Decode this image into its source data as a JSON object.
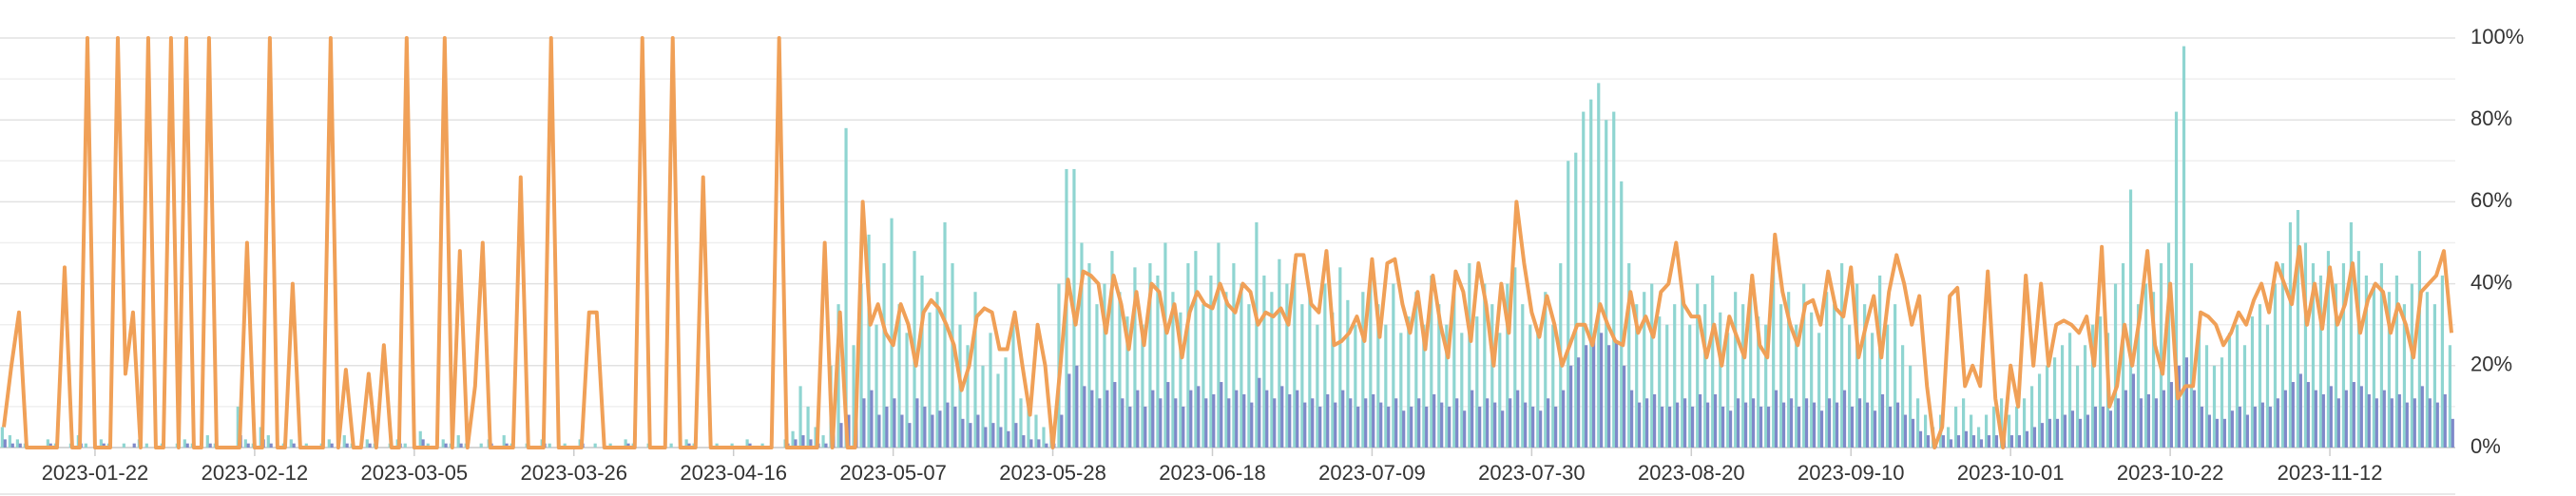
{
  "chart_data": {
    "type": "combo",
    "categories": [
      null,
      null,
      null,
      null,
      null,
      null,
      null,
      null,
      null,
      null,
      null,
      null,
      "2023-01-22",
      null,
      null,
      null,
      null,
      null,
      null,
      null,
      null,
      null,
      null,
      null,
      null,
      null,
      null,
      null,
      null,
      null,
      null,
      null,
      null,
      "2023-02-12",
      null,
      null,
      null,
      null,
      null,
      null,
      null,
      null,
      null,
      null,
      null,
      null,
      null,
      null,
      null,
      null,
      null,
      null,
      null,
      null,
      "2023-03-05",
      null,
      null,
      null,
      null,
      null,
      null,
      null,
      null,
      null,
      null,
      null,
      null,
      null,
      null,
      null,
      null,
      null,
      null,
      null,
      null,
      "2023-03-26",
      null,
      null,
      null,
      null,
      null,
      null,
      null,
      null,
      null,
      null,
      null,
      null,
      null,
      null,
      null,
      null,
      null,
      null,
      null,
      null,
      "2023-04-16",
      null,
      null,
      null,
      null,
      null,
      null,
      null,
      null,
      null,
      null,
      null,
      null,
      null,
      null,
      null,
      null,
      null,
      null,
      null,
      null,
      "2023-05-07",
      null,
      null,
      null,
      null,
      null,
      null,
      null,
      null,
      null,
      null,
      null,
      null,
      null,
      null,
      null,
      null,
      null,
      null,
      null,
      null,
      "2023-05-28",
      null,
      null,
      null,
      null,
      null,
      null,
      null,
      null,
      null,
      null,
      null,
      null,
      null,
      null,
      null,
      null,
      null,
      null,
      null,
      null,
      "2023-06-18",
      null,
      null,
      null,
      null,
      null,
      null,
      null,
      null,
      null,
      null,
      null,
      null,
      null,
      null,
      null,
      null,
      null,
      null,
      null,
      null,
      "2023-07-09",
      null,
      null,
      null,
      null,
      null,
      null,
      null,
      null,
      null,
      null,
      null,
      null,
      null,
      null,
      null,
      null,
      null,
      null,
      null,
      null,
      "2023-07-30",
      null,
      null,
      null,
      null,
      null,
      null,
      null,
      null,
      null,
      null,
      null,
      null,
      null,
      null,
      null,
      null,
      null,
      null,
      null,
      null,
      "2023-08-20",
      null,
      null,
      null,
      null,
      null,
      null,
      null,
      null,
      null,
      null,
      null,
      null,
      null,
      null,
      null,
      null,
      null,
      null,
      null,
      null,
      "2023-09-10",
      null,
      null,
      null,
      null,
      null,
      null,
      null,
      null,
      null,
      null,
      null,
      null,
      null,
      null,
      null,
      null,
      null,
      null,
      null,
      null,
      "2023-10-01",
      null,
      null,
      null,
      null,
      null,
      null,
      null,
      null,
      null,
      null,
      null,
      null,
      null,
      null,
      null,
      null,
      null,
      null,
      null,
      null,
      "2023-10-22",
      null,
      null,
      null,
      null,
      null,
      null,
      null,
      null,
      null,
      null,
      null,
      null,
      null,
      null,
      null,
      null,
      null,
      null,
      null,
      null,
      "2023-11-12",
      null,
      null,
      null,
      null,
      null,
      null,
      null,
      null,
      null,
      null,
      null,
      null,
      null,
      null,
      null,
      null
    ],
    "series": [
      {
        "type": "bar",
        "color": "#8fd5d1",
        "values": [
          5,
          3,
          2,
          1,
          0,
          0,
          2,
          1,
          0,
          1,
          3,
          1,
          0,
          2,
          1,
          0,
          1,
          0,
          2,
          1,
          0,
          1,
          0,
          1,
          2,
          1,
          0,
          3,
          1,
          0,
          0,
          10,
          2,
          1,
          5,
          3,
          0,
          1,
          2,
          0,
          1,
          0,
          1,
          2,
          0,
          3,
          1,
          0,
          2,
          1,
          0,
          1,
          2,
          1,
          0,
          4,
          1,
          0,
          2,
          1,
          3,
          1,
          0,
          1,
          2,
          0,
          3,
          1,
          0,
          1,
          0,
          2,
          1,
          0,
          1,
          0,
          2,
          0,
          1,
          0,
          1,
          0,
          2,
          1,
          0,
          1,
          0,
          0,
          1,
          0,
          2,
          1,
          0,
          0,
          1,
          0,
          1,
          0,
          2,
          0,
          1,
          0,
          0,
          2,
          4,
          15,
          10,
          5,
          3,
          20,
          35,
          78,
          25,
          40,
          52,
          30,
          45,
          56,
          35,
          28,
          48,
          42,
          33,
          38,
          55,
          45,
          30,
          25,
          38,
          20,
          28,
          18,
          22,
          30,
          12,
          10,
          8,
          5,
          3,
          40,
          68,
          68,
          50,
          45,
          35,
          40,
          48,
          38,
          32,
          44,
          30,
          45,
          42,
          50,
          38,
          33,
          45,
          48,
          35,
          42,
          50,
          38,
          45,
          40,
          35,
          55,
          42,
          38,
          46,
          40,
          45,
          35,
          38,
          30,
          40,
          33,
          44,
          36,
          30,
          38,
          42,
          35,
          30,
          40,
          28,
          32,
          38,
          30,
          42,
          35,
          30,
          38,
          28,
          45,
          32,
          40,
          35,
          28,
          40,
          44,
          35,
          30,
          28,
          38,
          30,
          45,
          70,
          72,
          82,
          85,
          89,
          80,
          82,
          65,
          45,
          35,
          38,
          40,
          32,
          30,
          35,
          38,
          30,
          40,
          35,
          42,
          33,
          28,
          38,
          35,
          40,
          32,
          30,
          45,
          35,
          38,
          30,
          40,
          33,
          28,
          38,
          35,
          45,
          30,
          40,
          35,
          28,
          42,
          30,
          35,
          25,
          20,
          12,
          8,
          5,
          8,
          5,
          10,
          12,
          8,
          5,
          8,
          10,
          12,
          8,
          10,
          12,
          15,
          18,
          20,
          22,
          25,
          28,
          20,
          25,
          30,
          32,
          28,
          40,
          45,
          63,
          35,
          40,
          38,
          45,
          50,
          82,
          98,
          45,
          30,
          25,
          20,
          22,
          28,
          30,
          25,
          32,
          35,
          30,
          40,
          45,
          55,
          58,
          50,
          45,
          42,
          48,
          40,
          45,
          55,
          48,
          42,
          40,
          45,
          38,
          42,
          35,
          40,
          48,
          38,
          35,
          42,
          25
        ]
      },
      {
        "type": "bar",
        "color": "#7f89c9",
        "values": [
          2,
          1,
          1,
          0,
          0,
          0,
          1,
          0,
          0,
          0,
          1,
          0,
          0,
          1,
          0,
          0,
          0,
          1,
          0,
          0,
          0,
          0,
          0,
          0,
          1,
          0,
          0,
          1,
          0,
          0,
          0,
          3,
          1,
          0,
          2,
          1,
          0,
          0,
          1,
          0,
          0,
          0,
          0,
          1,
          0,
          1,
          0,
          0,
          1,
          0,
          0,
          0,
          1,
          0,
          0,
          2,
          0,
          0,
          1,
          0,
          1,
          0,
          0,
          0,
          1,
          0,
          1,
          0,
          0,
          0,
          0,
          1,
          0,
          0,
          0,
          0,
          1,
          0,
          0,
          0,
          0,
          0,
          1,
          0,
          0,
          0,
          0,
          0,
          0,
          0,
          1,
          0,
          0,
          0,
          0,
          0,
          0,
          0,
          1,
          0,
          0,
          0,
          0,
          1,
          2,
          3,
          2,
          1,
          1,
          4,
          6,
          8,
          10,
          12,
          14,
          8,
          10,
          12,
          8,
          6,
          12,
          10,
          8,
          9,
          11,
          10,
          7,
          6,
          8,
          5,
          6,
          5,
          4,
          6,
          3,
          2,
          2,
          1,
          1,
          8,
          18,
          20,
          15,
          14,
          12,
          14,
          16,
          12,
          10,
          14,
          10,
          14,
          12,
          16,
          12,
          10,
          14,
          15,
          12,
          13,
          16,
          12,
          14,
          13,
          11,
          17,
          14,
          12,
          15,
          13,
          14,
          11,
          12,
          10,
          13,
          11,
          14,
          12,
          10,
          12,
          13,
          11,
          10,
          12,
          9,
          10,
          12,
          10,
          13,
          11,
          10,
          12,
          9,
          14,
          10,
          12,
          11,
          9,
          12,
          14,
          11,
          10,
          9,
          12,
          10,
          14,
          20,
          22,
          25,
          27,
          28,
          25,
          26,
          20,
          14,
          11,
          12,
          13,
          10,
          10,
          11,
          12,
          10,
          13,
          11,
          13,
          10,
          9,
          12,
          11,
          12,
          10,
          10,
          14,
          11,
          12,
          10,
          12,
          11,
          9,
          12,
          11,
          14,
          10,
          12,
          11,
          9,
          13,
          10,
          11,
          8,
          7,
          4,
          3,
          2,
          3,
          2,
          3,
          4,
          3,
          2,
          3,
          3,
          4,
          3,
          3,
          4,
          5,
          6,
          7,
          7,
          8,
          9,
          7,
          8,
          10,
          10,
          9,
          12,
          14,
          18,
          12,
          13,
          12,
          14,
          16,
          20,
          22,
          14,
          10,
          8,
          7,
          7,
          9,
          10,
          8,
          10,
          11,
          10,
          12,
          14,
          16,
          18,
          16,
          14,
          13,
          15,
          12,
          14,
          16,
          15,
          13,
          12,
          14,
          12,
          13,
          11,
          12,
          15,
          12,
          11,
          13,
          7
        ]
      },
      {
        "type": "line",
        "color": "#f0a057",
        "values": [
          5,
          20,
          33,
          0,
          0,
          0,
          0,
          0,
          44,
          0,
          0,
          100,
          0,
          0,
          0,
          100,
          18,
          33,
          0,
          100,
          0,
          0,
          100,
          0,
          100,
          0,
          0,
          100,
          0,
          0,
          0,
          0,
          50,
          0,
          0,
          100,
          0,
          0,
          40,
          0,
          0,
          0,
          0,
          100,
          0,
          19,
          0,
          0,
          18,
          0,
          25,
          0,
          0,
          100,
          0,
          0,
          0,
          0,
          100,
          0,
          48,
          0,
          15,
          50,
          0,
          0,
          0,
          0,
          66,
          0,
          0,
          0,
          100,
          0,
          0,
          0,
          0,
          33,
          33,
          0,
          0,
          0,
          0,
          0,
          100,
          0,
          0,
          0,
          100,
          0,
          0,
          0,
          66,
          0,
          0,
          0,
          0,
          0,
          0,
          0,
          0,
          0,
          100,
          0,
          0,
          0,
          0,
          0,
          50,
          0,
          33,
          0,
          0,
          60,
          30,
          35,
          28,
          25,
          35,
          30,
          20,
          33,
          36,
          34,
          30,
          25,
          14,
          20,
          32,
          34,
          33,
          24,
          24,
          33,
          20,
          8,
          30,
          20,
          0,
          20,
          41,
          30,
          43,
          42,
          40,
          28,
          42,
          35,
          24,
          38,
          25,
          40,
          38,
          28,
          35,
          22,
          33,
          38,
          35,
          34,
          40,
          35,
          33,
          40,
          38,
          30,
          33,
          32,
          34,
          30,
          47,
          47,
          35,
          33,
          48,
          25,
          26,
          28,
          32,
          26,
          46,
          27,
          45,
          46,
          35,
          28,
          38,
          24,
          42,
          30,
          22,
          43,
          38,
          26,
          45,
          35,
          20,
          40,
          28,
          60,
          45,
          33,
          27,
          37,
          30,
          20,
          25,
          30,
          30,
          25,
          35,
          30,
          26,
          25,
          38,
          28,
          32,
          27,
          38,
          40,
          50,
          35,
          32,
          32,
          22,
          30,
          20,
          32,
          27,
          22,
          42,
          25,
          22,
          52,
          38,
          30,
          25,
          35,
          36,
          30,
          43,
          34,
          32,
          44,
          22,
          30,
          37,
          22,
          38,
          47,
          40,
          30,
          37,
          15,
          0,
          5,
          37,
          39,
          15,
          20,
          15,
          43,
          12,
          0,
          20,
          10,
          42,
          20,
          40,
          20,
          30,
          31,
          30,
          28,
          32,
          20,
          49,
          10,
          15,
          30,
          20,
          32,
          48,
          25,
          18,
          40,
          12,
          15,
          15,
          33,
          32,
          30,
          25,
          28,
          33,
          30,
          36,
          40,
          33,
          45,
          40,
          35,
          49,
          30,
          40,
          29,
          44,
          30,
          35,
          45,
          28,
          36,
          40,
          38,
          28,
          35,
          30,
          22,
          38,
          40,
          42,
          48,
          28
        ]
      }
    ],
    "ylim": [
      0,
      100
    ],
    "yticks": [
      {
        "value": 0,
        "label": "0%"
      },
      {
        "value": 20,
        "label": "20%"
      },
      {
        "value": 40,
        "label": "40%"
      },
      {
        "value": 60,
        "label": "60%"
      },
      {
        "value": 80,
        "label": "80%"
      },
      {
        "value": 100,
        "label": "100%"
      }
    ],
    "minor_yticks": [
      10,
      30,
      50,
      70,
      90
    ],
    "grid": true
  }
}
